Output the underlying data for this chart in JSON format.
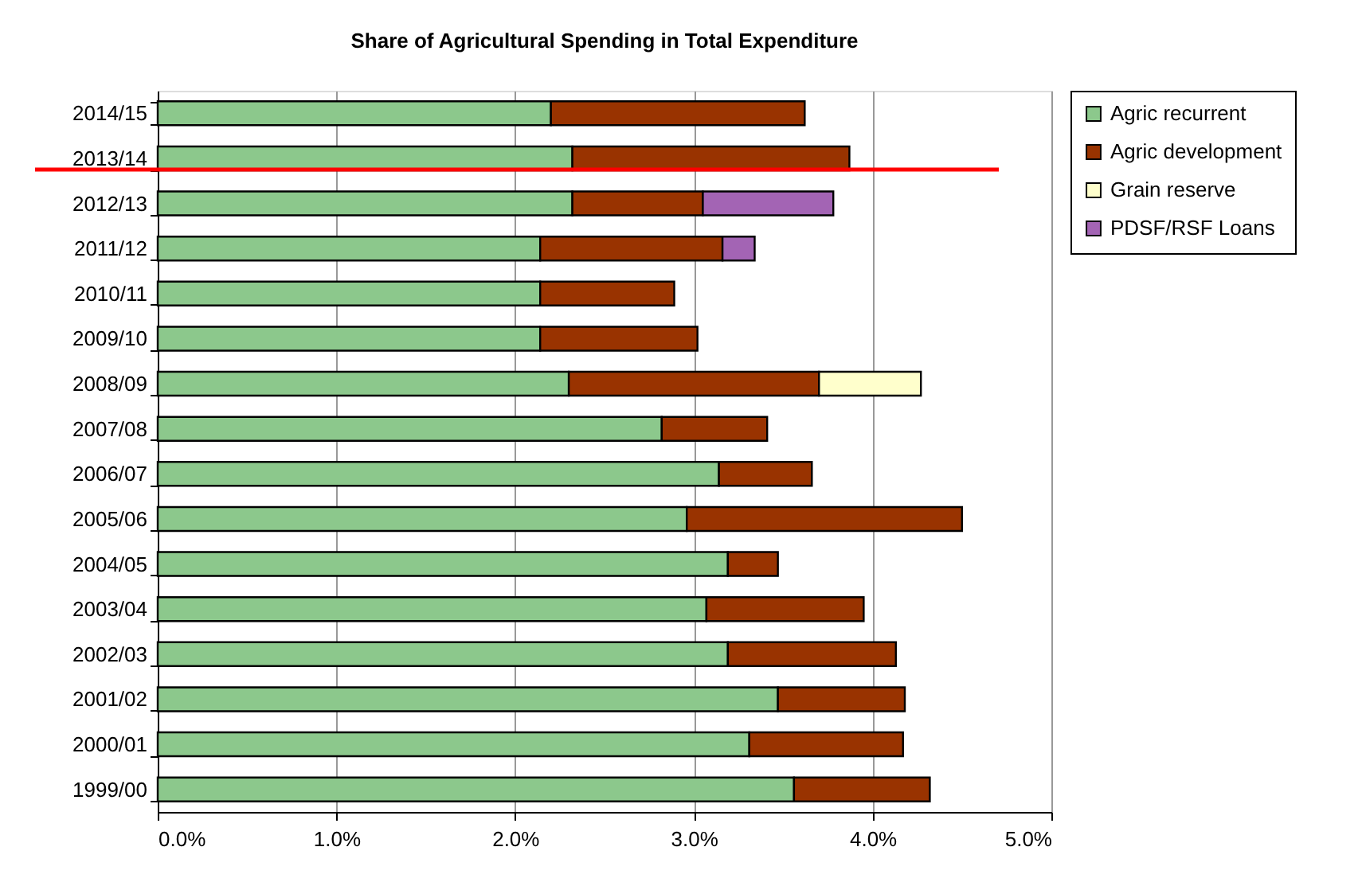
{
  "chart_data": {
    "type": "bar",
    "orientation": "horizontal",
    "stacked": true,
    "title": "Share of Agricultural Spending in Total Expenditure",
    "categories": [
      "2014/15",
      "2013/14",
      "2012/13",
      "2011/12",
      "2010/11",
      "2009/10",
      "2008/09",
      "2007/08",
      "2006/07",
      "2005/06",
      "2004/05",
      "2003/04",
      "2002/03",
      "2001/02",
      "2000/01",
      "1999/00"
    ],
    "series": [
      {
        "name": "Agric recurrent",
        "color": "#8cc88c",
        "values": [
          2.2,
          2.32,
          2.32,
          2.14,
          2.14,
          2.14,
          2.3,
          2.82,
          3.14,
          2.96,
          3.19,
          3.07,
          3.19,
          3.47,
          3.31,
          3.56
        ]
      },
      {
        "name": "Agric development",
        "color": "#993300",
        "values": [
          1.42,
          1.55,
          0.73,
          1.02,
          0.75,
          0.88,
          1.4,
          0.59,
          0.52,
          1.54,
          0.28,
          0.88,
          0.94,
          0.71,
          0.86,
          0.76
        ]
      },
      {
        "name": "Grain reserve",
        "color": "#ffffcc",
        "values": [
          null,
          null,
          null,
          null,
          null,
          null,
          0.57,
          null,
          null,
          null,
          null,
          null,
          null,
          null,
          null,
          null
        ]
      },
      {
        "name": "PDSF/RSF Loans",
        "color": "#a364b4",
        "values": [
          null,
          null,
          0.73,
          0.18,
          null,
          null,
          null,
          null,
          null,
          null,
          null,
          null,
          null,
          null,
          null,
          null
        ]
      }
    ],
    "xlim": [
      0,
      5
    ],
    "xticks": [
      {
        "value": 0,
        "label": "0.0%"
      },
      {
        "value": 1,
        "label": "1.0%"
      },
      {
        "value": 2,
        "label": "2.0%"
      },
      {
        "value": 3,
        "label": "3.0%"
      },
      {
        "value": 4,
        "label": "4.0%"
      },
      {
        "value": 5,
        "label": "5.0%"
      }
    ],
    "ref_lines": [
      {
        "axis": "y",
        "value": "2013/14",
        "color": "#ff0000",
        "line_style": "solid"
      }
    ],
    "grid": "x",
    "legend": "right"
  }
}
